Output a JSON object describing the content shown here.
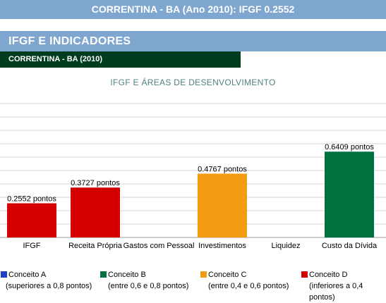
{
  "header": {
    "title": "CORRENTINA - BA (Ano 2010): IFGF 0.2552"
  },
  "section": {
    "title": "IFGF E INDICADORES"
  },
  "subheader": {
    "title": "CORRENTINA - BA (2010)"
  },
  "colors": {
    "conceito_a": "#1f3ec7",
    "conceito_b": "#00703c",
    "conceito_c": "#f39c12",
    "conceito_d": "#d40000"
  },
  "chart_data": {
    "type": "bar",
    "title": "IFGF E ÁREAS DE DESENVOLVIMENTO",
    "categories": [
      "IFGF",
      "Receita Própria",
      "Gastos com Pessoal",
      "Investimentos",
      "Liquidez",
      "Custo da Dívida"
    ],
    "values": [
      0.2552,
      0.3727,
      null,
      0.4767,
      null,
      0.6409
    ],
    "data_labels": [
      "0.2552 pontos",
      "0.3727 pontos",
      "",
      "0.4767 pontos",
      "",
      "0.6409 pontos"
    ],
    "bar_colors": [
      "#d40000",
      "#d40000",
      "",
      "#f39c12",
      "",
      "#00703c"
    ],
    "ylim": [
      0,
      1
    ],
    "grid": true
  },
  "legend": [
    {
      "label": "Conceito A",
      "range": "(superiores a 0,8 pontos)",
      "color": "#1f3ec7"
    },
    {
      "label": "Conceito B",
      "range": "(entre 0,6 e 0,8 pontos)",
      "color": "#00703c"
    },
    {
      "label": "Conceito C",
      "range": "(entre 0,4 e 0,6 pontos)",
      "color": "#f39c12"
    },
    {
      "label": "Conceito D",
      "range": "(inferiores a 0,4 pontos)",
      "color": "#d40000"
    }
  ]
}
